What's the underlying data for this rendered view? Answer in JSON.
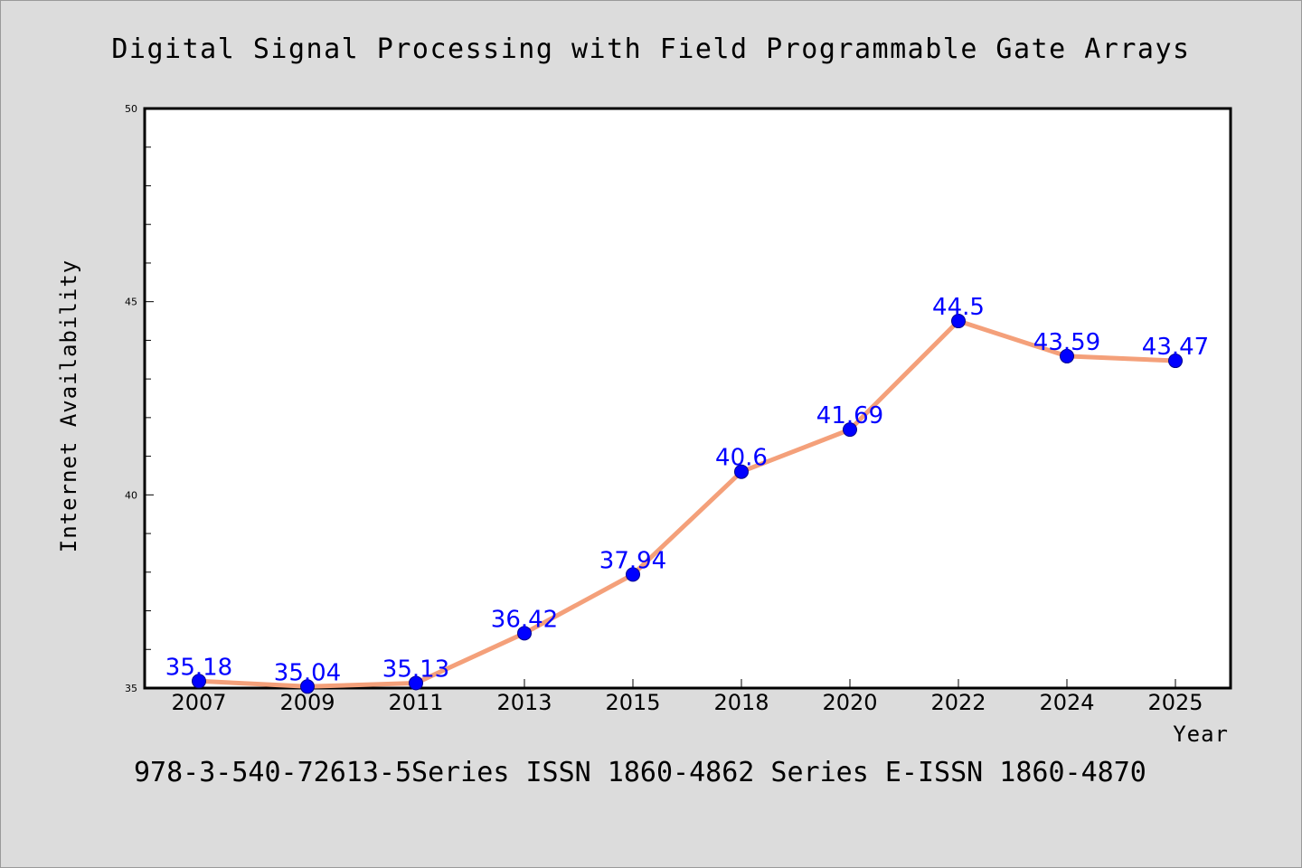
{
  "title": "Digital Signal Processing with Field Programmable Gate Arrays",
  "footer": "978-3-540-72613-5Series ISSN 1860-4862 Series E-ISSN 1860-4870",
  "chart_data": {
    "type": "line",
    "title": "Digital Signal Processing with Field Programmable Gate Arrays",
    "xlabel": "Year",
    "ylabel": "Internet Availability",
    "categories": [
      "2007",
      "2009",
      "2011",
      "2013",
      "2015",
      "2018",
      "2020",
      "2022",
      "2024",
      "2025"
    ],
    "values": [
      35.18,
      35.04,
      35.13,
      36.42,
      37.94,
      40.6,
      41.69,
      44.5,
      43.59,
      43.47
    ],
    "data_labels": [
      "35.18",
      "35.04",
      "35.13",
      "36.42",
      "37.94",
      "40.6",
      "41.69",
      "44.5",
      "43.59",
      "43.47"
    ],
    "ylim": [
      35,
      50
    ],
    "yticks": [
      "35",
      "40",
      "45",
      "50"
    ],
    "line_color": "#f4a07a",
    "marker_color": "#0000ff",
    "label_color": "#0000ff",
    "grid": false,
    "legend": "none"
  }
}
